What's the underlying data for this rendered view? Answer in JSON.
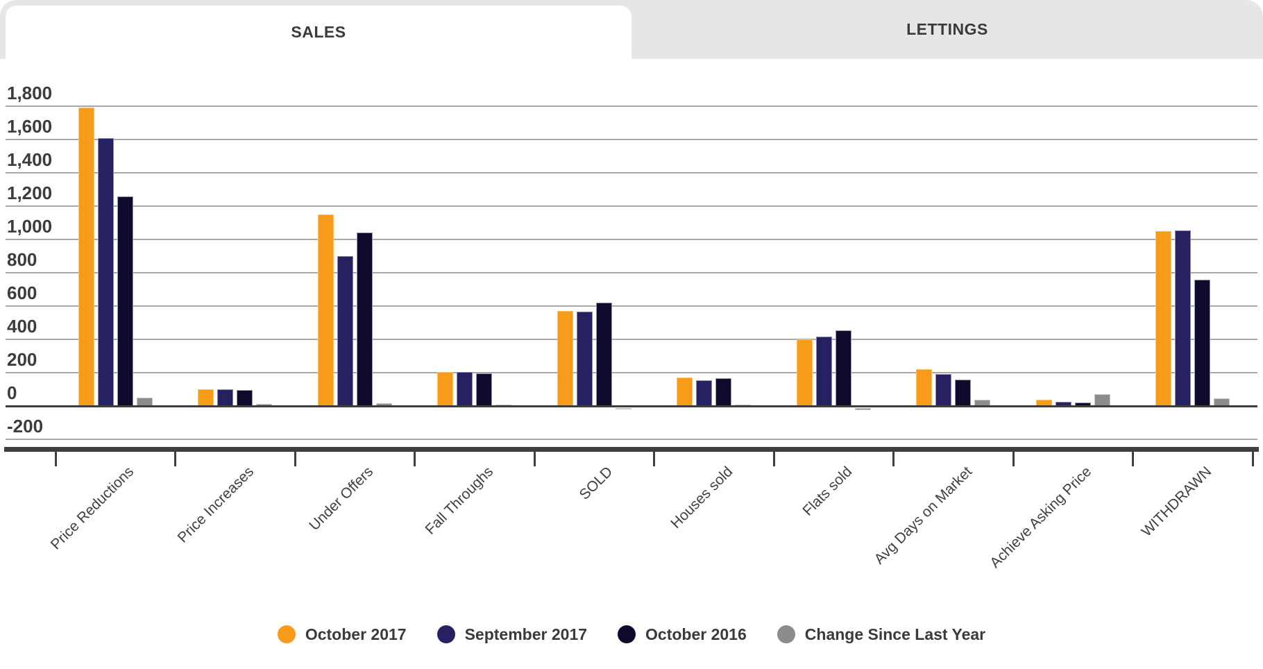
{
  "tabs": [
    {
      "label": "SALES",
      "active": true
    },
    {
      "label": "LETTINGS",
      "active": false
    }
  ],
  "chart_data": {
    "type": "bar",
    "categories": [
      "Price Reductions",
      "Price Increases",
      "Under Offers",
      "Fall Throughs",
      "SOLD",
      "Houses sold",
      "Flats sold",
      "Avg Days on Market",
      "Achieve Asking Price",
      "WITHDRAWN"
    ],
    "series": [
      {
        "name": "October 2017",
        "color": "#F89B1B",
        "border": "#FBC26A",
        "values": [
          1790,
          100,
          1150,
          205,
          570,
          170,
          400,
          220,
          38,
          1050
        ]
      },
      {
        "name": "September 2017",
        "color": "#262262",
        "border": "#8D8AB5",
        "values": [
          1610,
          98,
          900,
          205,
          565,
          155,
          415,
          190,
          27,
          1055
        ]
      },
      {
        "name": "October 2016",
        "color": "#0E0A2B",
        "border": "#9B98B4",
        "values": [
          1260,
          95,
          1040,
          195,
          620,
          165,
          455,
          160,
          20,
          760
        ]
      },
      {
        "name": "Change Since Last Year",
        "color": "#8C8C8C",
        "border": "#C6C6C6",
        "values": [
          48,
          12,
          15,
          8,
          -10,
          8,
          -12,
          38,
          70,
          45
        ]
      }
    ],
    "ylim": [
      -200,
      1800
    ],
    "ytick_step": 200,
    "yticks": [
      {
        "value": 1800,
        "label": "1,800"
      },
      {
        "value": 1600,
        "label": "1,600"
      },
      {
        "value": 1400,
        "label": "1,400"
      },
      {
        "value": 1200,
        "label": "1,200"
      },
      {
        "value": 1000,
        "label": "1,000"
      },
      {
        "value": 800,
        "label": "800"
      },
      {
        "value": 600,
        "label": "600"
      },
      {
        "value": 400,
        "label": "400"
      },
      {
        "value": 200,
        "label": "200"
      },
      {
        "value": 0,
        "label": "0"
      },
      {
        "value": -200,
        "label": "-200"
      }
    ],
    "grid": true,
    "legend_position": "bottom"
  }
}
